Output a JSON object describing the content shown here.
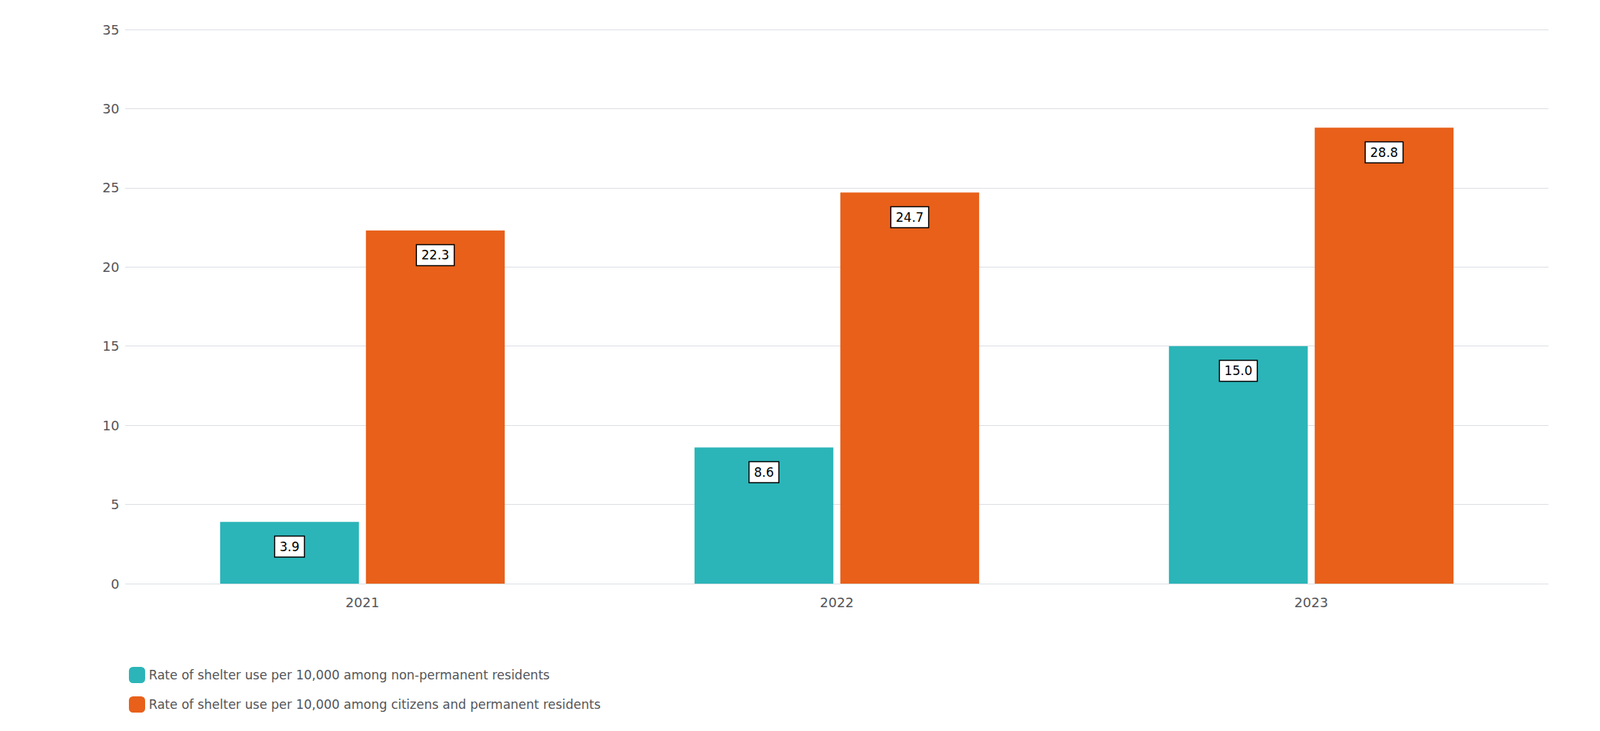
{
  "chart_data": {
    "type": "bar",
    "categories": [
      "2021",
      "2022",
      "2023"
    ],
    "series": [
      {
        "name": "Rate of shelter use per 10,000 among non-permanent residents",
        "color": "#2BB5B8",
        "values": [
          3.9,
          8.6,
          15.0
        ],
        "value_labels": [
          "3.9",
          "8.6",
          "15.0"
        ]
      },
      {
        "name": "Rate of shelter use per 10,000 among citizens and permanent residents",
        "color": "#E8601A",
        "values": [
          22.3,
          24.7,
          28.8
        ],
        "value_labels": [
          "22.3",
          "24.7",
          "28.8"
        ]
      }
    ],
    "ylim": [
      0,
      35.0
    ],
    "yticks": [
      0,
      5,
      10,
      15,
      20,
      25,
      30,
      35
    ],
    "grid": true,
    "legend": "bottom left",
    "data_labels": true
  }
}
